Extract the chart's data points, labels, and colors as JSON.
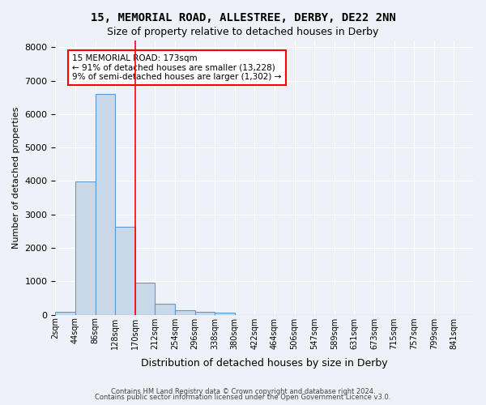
{
  "title1": "15, MEMORIAL ROAD, ALLESTREE, DERBY, DE22 2NN",
  "title2": "Size of property relative to detached houses in Derby",
  "xlabel": "Distribution of detached houses by size in Derby",
  "ylabel": "Number of detached properties",
  "bin_labels": [
    "2sqm",
    "44sqm",
    "86sqm",
    "128sqm",
    "170sqm",
    "212sqm",
    "254sqm",
    "296sqm",
    "338sqm",
    "380sqm",
    "422sqm",
    "464sqm",
    "506sqm",
    "547sqm",
    "589sqm",
    "631sqm",
    "673sqm",
    "715sqm",
    "757sqm",
    "799sqm",
    "841sqm"
  ],
  "bar_values": [
    80,
    3980,
    6600,
    2620,
    960,
    320,
    130,
    90,
    60,
    0,
    0,
    0,
    0,
    0,
    0,
    0,
    0,
    0,
    0,
    0,
    0
  ],
  "bar_color": "#c8d8e8",
  "bar_edge_color": "#5b9bd5",
  "red_line_x": 4,
  "annotation_text": "15 MEMORIAL ROAD: 173sqm\n← 91% of detached houses are smaller (13,228)\n9% of semi-detached houses are larger (1,302) →",
  "annotation_box_color": "white",
  "annotation_box_edge_color": "red",
  "ylim": [
    0,
    8200
  ],
  "yticks": [
    0,
    1000,
    2000,
    3000,
    4000,
    5000,
    6000,
    7000,
    8000
  ],
  "footer1": "Contains HM Land Registry data © Crown copyright and database right 2024.",
  "footer2": "Contains public sector information licensed under the Open Government Licence v3.0.",
  "bg_color": "#eef2f8",
  "grid_color": "white"
}
